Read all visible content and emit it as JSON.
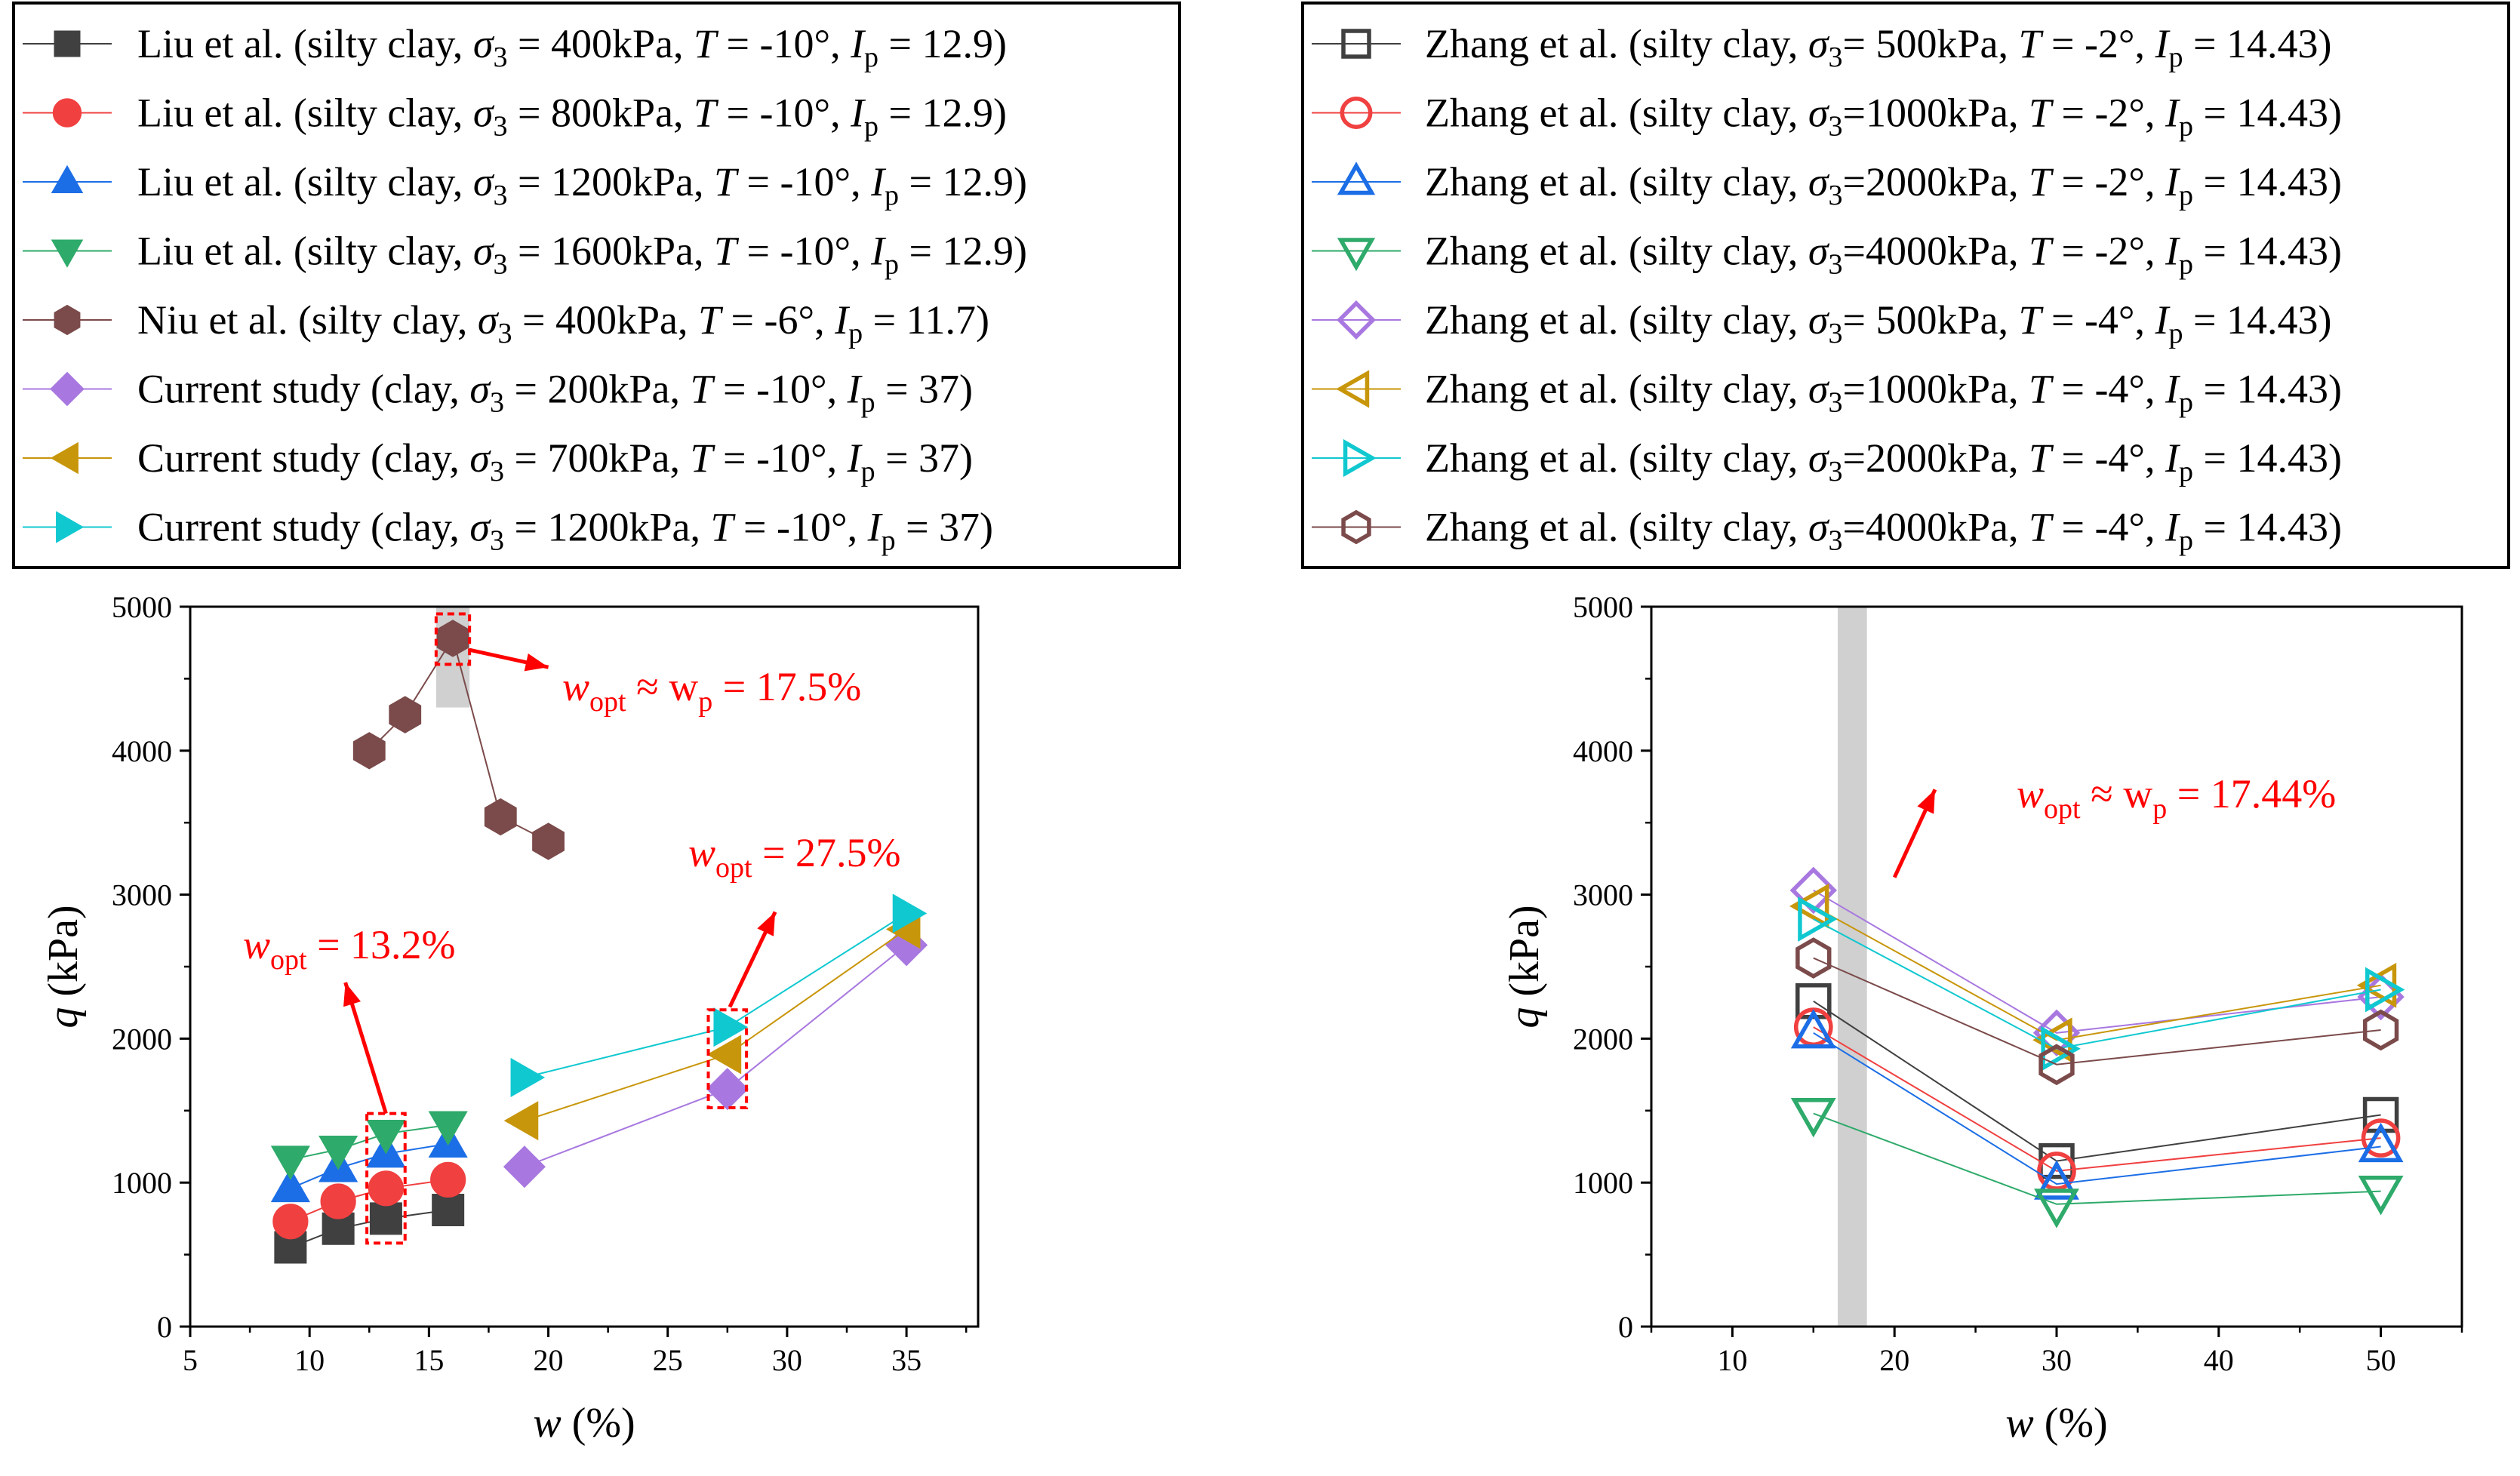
{
  "chart_data": [
    {
      "type": "scatter",
      "id": "left",
      "xlabel": "w",
      "xlabel_unit": " (%)",
      "ylabel": "q",
      "ylabel_unit": " (kPa)",
      "xlim": [
        5,
        38
      ],
      "ylim": [
        0,
        5000
      ],
      "xticks": [
        5,
        10,
        15,
        20,
        25,
        30,
        35
      ],
      "yticks": [
        0,
        1000,
        2000,
        3000,
        4000,
        5000
      ],
      "shade": {
        "x0": 15.3,
        "x1": 16.7,
        "y0": 4300,
        "y1": 5000
      },
      "series": [
        {
          "name": "Liu et al. (silty clay, σ3 =  400kPa,  T = -10°, Ip = 12.9)",
          "legend": {
            "a": "Liu et al. (silty clay, ",
            "b": " =  400kPa,  ",
            "c": " = -10°, ",
            "d": " = 12.9)"
          },
          "marker": "square",
          "filled": true,
          "color": "#404040",
          "x": [
            9.2,
            11.2,
            13.2,
            15.8
          ],
          "y": [
            550,
            680,
            750,
            810
          ]
        },
        {
          "name": "Liu et al. (silty clay, σ3 =  800kPa,  T = -10°, Ip = 12.9)",
          "legend": {
            "a": "Liu et al. (silty clay, ",
            "b": " =  800kPa,  ",
            "c": " = -10°, ",
            "d": " = 12.9)"
          },
          "marker": "circle",
          "filled": true,
          "color": "#f04040",
          "x": [
            9.2,
            11.2,
            13.2,
            15.8
          ],
          "y": [
            730,
            870,
            960,
            1020
          ]
        },
        {
          "name": "Liu et al. (silty clay, σ3 = 1200kPa, T = -10°, Ip = 12.9)",
          "legend": {
            "a": "Liu et al. (silty clay, ",
            "b": " = 1200kPa, ",
            "c": " = -10°, ",
            "d": " = 12.9)"
          },
          "marker": "triangle-up",
          "filled": true,
          "color": "#1c6ee6",
          "x": [
            9.2,
            11.2,
            13.2,
            15.8
          ],
          "y": [
            960,
            1100,
            1200,
            1270
          ]
        },
        {
          "name": "Liu et al. (silty clay, σ3 = 1600kPa, T = -10°, Ip = 12.9)",
          "legend": {
            "a": "Liu et al. (silty clay, ",
            "b": " = 1600kPa, ",
            "c": " = -10°, ",
            "d": " = 12.9)"
          },
          "marker": "triangle-down",
          "filled": true,
          "color": "#2eaa6a",
          "x": [
            9.2,
            11.2,
            13.2,
            15.8
          ],
          "y": [
            1160,
            1230,
            1340,
            1400
          ]
        },
        {
          "name": "Niu et al. (silty clay, σ3 = 400kPa,   T = -6°,  Ip = 11.7)",
          "legend": {
            "a": "Niu et al. (silty clay, ",
            "b": " = 400kPa,   ",
            "c": " = -6°,  ",
            "d": " = 11.7)"
          },
          "marker": "hexagon",
          "filled": true,
          "color": "#7b4a4a",
          "x": [
            12.5,
            14,
            16,
            18,
            20
          ],
          "y": [
            4000,
            4250,
            4780,
            3540,
            3370
          ]
        },
        {
          "name": "Current study (clay, σ3 =  200kPa,  T = -10°, Ip = 37)",
          "legend": {
            "a": "Current study (clay, ",
            "b": " =  200kPa,  ",
            "c": " = -10°, ",
            "d": " = 37)"
          },
          "marker": "diamond",
          "filled": true,
          "color": "#a878e0",
          "x": [
            19,
            27.5,
            35
          ],
          "y": [
            1110,
            1650,
            2650
          ]
        },
        {
          "name": "Current study (clay, σ3 =  700kPa,  T = -10°, Ip = 37)",
          "legend": {
            "a": "Current study (clay, ",
            "b": " =  700kPa,  ",
            "c": " = -10°, ",
            "d": " = 37)"
          },
          "marker": "triangle-left",
          "filled": true,
          "color": "#c8960a",
          "x": [
            19,
            27.5,
            35
          ],
          "y": [
            1430,
            1890,
            2760
          ]
        },
        {
          "name": "Current study (clay, σ3 = 1200kPa, T = -10°, Ip = 37)",
          "legend": {
            "a": "Current study (clay, ",
            "b": " = 1200kPa, ",
            "c": " = -10°, ",
            "d": " = 37)"
          },
          "marker": "triangle-right",
          "filled": true,
          "color": "#10c8d0",
          "x": [
            19,
            27.5,
            35
          ],
          "y": [
            1730,
            2080,
            2870
          ]
        }
      ],
      "annotations": [
        {
          "lead": "w",
          "sub": "opt",
          "rest": " ≈ w",
          "sub2": "p",
          "tail": " = 17.5%"
        },
        {
          "lead": "w",
          "sub": "opt",
          "rest": " = 13.2%"
        },
        {
          "lead": "w",
          "sub": "opt",
          "rest": " = 27.5%"
        }
      ]
    },
    {
      "type": "scatter",
      "id": "right",
      "xlabel": "w",
      "xlabel_unit": " (%)",
      "ylabel": "q",
      "ylabel_unit": " (kPa)",
      "xlim": [
        5,
        55
      ],
      "ylim": [
        0,
        5000
      ],
      "xticks": [
        10,
        20,
        30,
        40,
        50
      ],
      "yticks": [
        0,
        1000,
        2000,
        3000,
        4000,
        5000
      ],
      "shade": {
        "x0": 16.5,
        "x1": 18.3,
        "y0": 0,
        "y1": 5000
      },
      "series": [
        {
          "name": "Zhang et al. (silty clay, σ3= 500kPa,    T = -2°, Ip = 14.43)",
          "legend": {
            "a": "Zhang et al. (silty clay, ",
            "b": "= 500kPa,    ",
            "c": " = -2°, ",
            "d": " = 14.43)"
          },
          "marker": "square",
          "filled": false,
          "color": "#404040",
          "x": [
            15,
            30,
            50
          ],
          "y": [
            2260,
            1150,
            1470
          ]
        },
        {
          "name": "Zhang et al. (silty clay, σ3=1000kPa,  T = -2°, Ip = 14.43)",
          "legend": {
            "a": "Zhang et al. (silty clay, ",
            "b": "=1000kPa,  ",
            "c": " = -2°, ",
            "d": " = 14.43)"
          },
          "marker": "circle",
          "filled": false,
          "color": "#f04040",
          "x": [
            15,
            30,
            50
          ],
          "y": [
            2080,
            1080,
            1310
          ]
        },
        {
          "name": "Zhang et al. (silty clay, σ3=2000kPa,  T = -2°, Ip = 14.43)",
          "legend": {
            "a": "Zhang et al. (silty clay, ",
            "b": "=2000kPa,  ",
            "c": " = -2°, ",
            "d": " = 14.43)"
          },
          "marker": "triangle-up",
          "filled": false,
          "color": "#1c6ee6",
          "x": [
            15,
            30,
            50
          ],
          "y": [
            2040,
            990,
            1250
          ]
        },
        {
          "name": "Zhang et al. (silty clay, σ3=4000kPa,  T = -2°, Ip = 14.43)",
          "legend": {
            "a": "Zhang et al. (silty clay, ",
            "b": "=4000kPa,  ",
            "c": " = -2°, ",
            "d": " = 14.43)"
          },
          "marker": "triangle-down",
          "filled": false,
          "color": "#2eaa6a",
          "x": [
            15,
            30,
            50
          ],
          "y": [
            1480,
            850,
            940
          ]
        },
        {
          "name": "Zhang et al. (silty clay, σ3= 500kPa,    T = -4°, Ip = 14.43)",
          "legend": {
            "a": "Zhang et al. (silty clay, ",
            "b": "= 500kPa,    ",
            "c": " = -4°, ",
            "d": " = 14.43)"
          },
          "marker": "diamond",
          "filled": false,
          "color": "#a878e0",
          "x": [
            15,
            30,
            50
          ],
          "y": [
            3030,
            2040,
            2290
          ]
        },
        {
          "name": "Zhang et al. (silty clay, σ3=1000kPa,  T = -4°, Ip = 14.43)",
          "legend": {
            "a": "Zhang et al. (silty clay, ",
            "b": "=1000kPa,  ",
            "c": " = -4°, ",
            "d": " = 14.43)"
          },
          "marker": "triangle-left",
          "filled": false,
          "color": "#c8960a",
          "x": [
            15,
            30,
            50
          ],
          "y": [
            2920,
            1990,
            2370
          ]
        },
        {
          "name": "Zhang et al. (silty clay, σ3=2000kPa,  T = -4°, Ip = 14.43)",
          "legend": {
            "a": "Zhang et al. (silty clay, ",
            "b": "=2000kPa,  ",
            "c": " = -4°, ",
            "d": " = 14.43)"
          },
          "marker": "triangle-right",
          "filled": false,
          "color": "#10c8d0",
          "x": [
            15,
            30,
            50
          ],
          "y": [
            2830,
            1930,
            2340
          ]
        },
        {
          "name": "Zhang et al. (silty clay, σ3=4000kPa,  T = -4°, Ip = 14.43)",
          "legend": {
            "a": "Zhang et al. (silty clay, ",
            "b": "=4000kPa,  ",
            "c": " = -4°, ",
            "d": " = 14.43)"
          },
          "marker": "hexagon",
          "filled": false,
          "color": "#7b4a4a",
          "x": [
            15,
            30,
            50
          ],
          "y": [
            2560,
            1820,
            2060
          ]
        }
      ],
      "annotations": [
        {
          "lead": "w",
          "sub": "opt",
          "rest": " ≈ w",
          "sub2": "p",
          "tail": " = 17.44%"
        }
      ]
    }
  ]
}
